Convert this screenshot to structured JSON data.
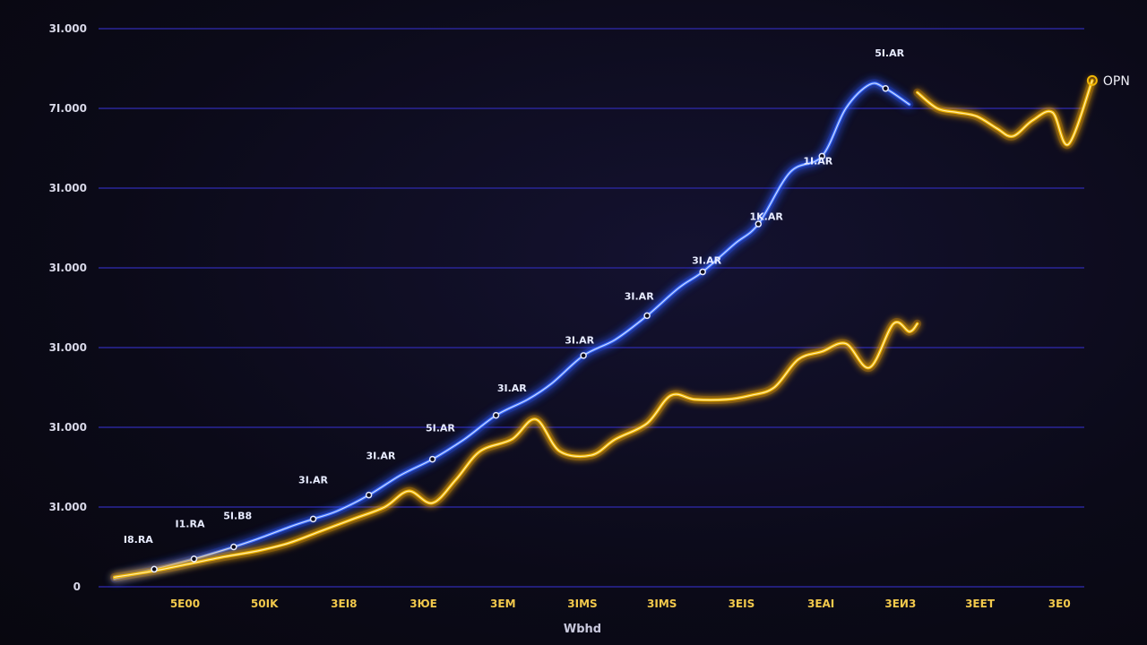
{
  "chart_data": {
    "type": "line",
    "title": "",
    "xlabel": "Wbhd",
    "ylabel": "",
    "grid": true,
    "legend": "none",
    "x": [
      0,
      1,
      2,
      3,
      4,
      5,
      6,
      7,
      8,
      9,
      10,
      11,
      12
    ],
    "xlim": [
      -0.2,
      12.2
    ],
    "ylim": [
      0,
      7
    ],
    "x_tick_labels": [
      {
        "x": 1,
        "label": "5E00"
      },
      {
        "x": 2,
        "label": "50IK"
      },
      {
        "x": 3,
        "label": "3EI8"
      },
      {
        "x": 4,
        "label": "3ЮE"
      },
      {
        "x": 5,
        "label": "3EM"
      },
      {
        "x": 6,
        "label": "3IMS"
      },
      {
        "x": 7,
        "label": "3IMS"
      },
      {
        "x": 8,
        "label": "3EIS"
      },
      {
        "x": 9,
        "label": "3EAI"
      },
      {
        "x": 10,
        "label": "3EИ3"
      },
      {
        "x": 11,
        "label": "3EET"
      },
      {
        "x": 12,
        "label": "3E0"
      }
    ],
    "y_tick_labels": [
      {
        "y": 0,
        "label": "0"
      },
      {
        "y": 1,
        "label": "3I.000"
      },
      {
        "y": 2,
        "label": "3I.000"
      },
      {
        "y": 3,
        "label": "3I.000"
      },
      {
        "y": 4,
        "label": "3I.000"
      },
      {
        "y": 5,
        "label": "3I.000"
      },
      {
        "y": 6,
        "label": "7I.000"
      },
      {
        "y": 7,
        "label": "3I.000"
      }
    ],
    "series": [
      {
        "color": "#3b6dff",
        "glow": "#1a44ff",
        "points": [
          [
            0,
            0.1
          ],
          [
            0.5,
            0.22
          ],
          [
            1.0,
            0.35
          ],
          [
            1.5,
            0.5
          ],
          [
            1.8,
            0.6
          ],
          [
            2.2,
            0.75
          ],
          [
            2.5,
            0.85
          ],
          [
            2.8,
            0.95
          ],
          [
            3.2,
            1.15
          ],
          [
            3.6,
            1.4
          ],
          [
            4.0,
            1.6
          ],
          [
            4.4,
            1.85
          ],
          [
            4.8,
            2.15
          ],
          [
            5.2,
            2.35
          ],
          [
            5.5,
            2.55
          ],
          [
            5.9,
            2.9
          ],
          [
            6.3,
            3.1
          ],
          [
            6.7,
            3.4
          ],
          [
            7.1,
            3.75
          ],
          [
            7.4,
            3.95
          ],
          [
            7.8,
            4.3
          ],
          [
            8.1,
            4.55
          ],
          [
            8.5,
            5.2
          ],
          [
            8.9,
            5.4
          ],
          [
            9.2,
            6.0
          ],
          [
            9.5,
            6.3
          ],
          [
            9.7,
            6.25
          ],
          [
            10.0,
            6.05
          ]
        ],
        "labels": [
          {
            "x": 0.3,
            "y": 0.55,
            "text": "I8.RA"
          },
          {
            "x": 0.95,
            "y": 0.75,
            "text": "I1.RA"
          },
          {
            "x": 1.55,
            "y": 0.85,
            "text": "5I.B8"
          },
          {
            "x": 2.5,
            "y": 1.3,
            "text": "3I.AR"
          },
          {
            "x": 3.35,
            "y": 1.6,
            "text": "3I.AR"
          },
          {
            "x": 4.1,
            "y": 1.95,
            "text": "5I.AR"
          },
          {
            "x": 5.0,
            "y": 2.45,
            "text": "3I.AR"
          },
          {
            "x": 5.85,
            "y": 3.05,
            "text": "3I.AR"
          },
          {
            "x": 6.6,
            "y": 3.6,
            "text": "3I.AR"
          },
          {
            "x": 7.45,
            "y": 4.05,
            "text": "3I.AR"
          },
          {
            "x": 8.2,
            "y": 4.6,
            "text": "1K.AR"
          },
          {
            "x": 8.85,
            "y": 5.3,
            "text": "1I.AR"
          },
          {
            "x": 9.75,
            "y": 6.65,
            "text": "5I.AR"
          }
        ]
      },
      {
        "color": "#f2b705",
        "glow": "#ff9d00",
        "points": [
          [
            0,
            0.12
          ],
          [
            0.5,
            0.2
          ],
          [
            1.0,
            0.3
          ],
          [
            1.4,
            0.38
          ],
          [
            1.8,
            0.45
          ],
          [
            2.2,
            0.55
          ],
          [
            2.6,
            0.7
          ],
          [
            3.0,
            0.85
          ],
          [
            3.4,
            1.0
          ],
          [
            3.7,
            1.2
          ],
          [
            4.0,
            1.05
          ],
          [
            4.3,
            1.35
          ],
          [
            4.6,
            1.7
          ],
          [
            5.0,
            1.85
          ],
          [
            5.3,
            2.1
          ],
          [
            5.6,
            1.7
          ],
          [
            6.0,
            1.65
          ],
          [
            6.3,
            1.85
          ],
          [
            6.7,
            2.05
          ],
          [
            7.0,
            2.4
          ],
          [
            7.3,
            2.35
          ],
          [
            7.7,
            2.35
          ],
          [
            8.0,
            2.4
          ],
          [
            8.3,
            2.5
          ],
          [
            8.6,
            2.85
          ],
          [
            8.9,
            2.95
          ],
          [
            9.2,
            3.05
          ],
          [
            9.5,
            2.75
          ],
          [
            9.8,
            3.3
          ],
          [
            10.0,
            3.2
          ],
          [
            10.1,
            3.3
          ]
        ]
      },
      {
        "color": "#f2b705",
        "glow": "#ff9d00",
        "points": [
          [
            10.1,
            6.2
          ],
          [
            10.35,
            6.0
          ],
          [
            10.6,
            5.95
          ],
          [
            10.85,
            5.9
          ],
          [
            11.1,
            5.75
          ],
          [
            11.3,
            5.65
          ],
          [
            11.55,
            5.85
          ],
          [
            11.8,
            5.95
          ],
          [
            12.0,
            5.55
          ],
          [
            12.3,
            6.35
          ]
        ],
        "end_label": "OPN"
      }
    ]
  }
}
